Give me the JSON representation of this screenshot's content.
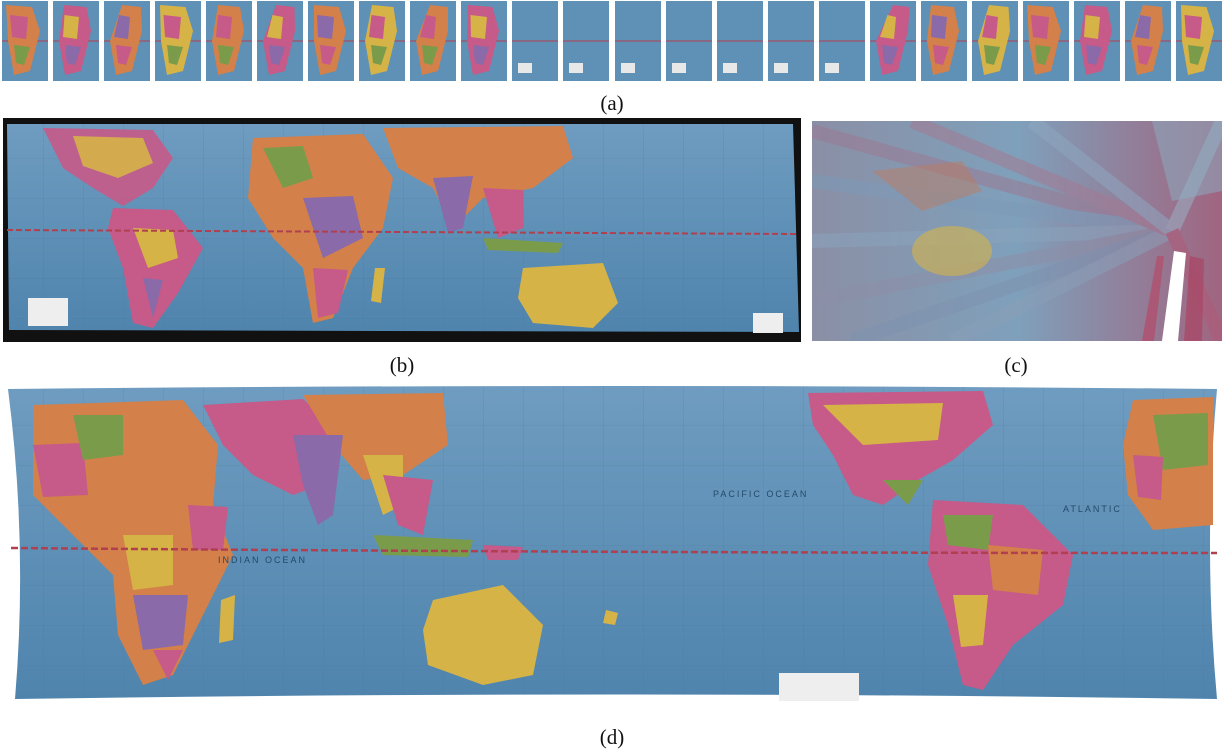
{
  "captions": {
    "a": "(a)",
    "b": "(b)",
    "c": "(c)",
    "d": "(d)"
  },
  "map_labels": {
    "pacific": "PACIFIC OCEAN",
    "atlantic": "ATLANTIC",
    "indian": "INDIAN OCEAN"
  },
  "colors": {
    "ocean": "#5b8db4",
    "ocean_light": "#7aa6c7",
    "land_yellow": "#d6b347",
    "land_pink": "#c65a88",
    "land_orange": "#d3804a",
    "land_green": "#7a9c4a",
    "land_purple": "#8a6aa8",
    "equator": "#b04050",
    "mat_black": "#111111"
  },
  "thumbnails": {
    "count": 24
  }
}
